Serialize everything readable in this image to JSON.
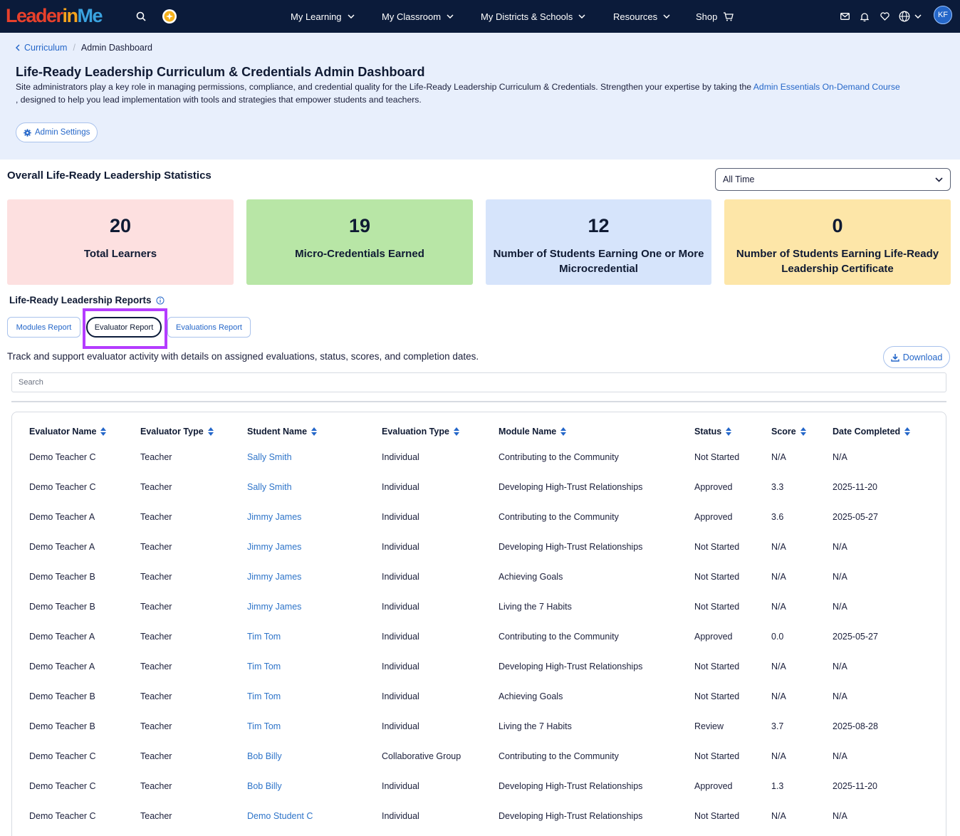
{
  "nav": {
    "logo": {
      "part1": "Leader",
      "part2": "in",
      "part3": "Me"
    },
    "items": [
      {
        "label": "My Learning",
        "has_chevron": true
      },
      {
        "label": "My Classroom",
        "has_chevron": true
      },
      {
        "label": "My Districts & Schools",
        "has_chevron": true
      },
      {
        "label": "Resources",
        "has_chevron": true
      },
      {
        "label": "Shop",
        "icon": "cart-icon"
      }
    ],
    "right_icons": [
      "mail-icon",
      "bell-icon",
      "heart-icon",
      "globe-icon"
    ],
    "avatar_initials": "KF"
  },
  "breadcrumb": {
    "parent": "Curriculum",
    "current": "Admin Dashboard"
  },
  "header": {
    "title": "Life-Ready Leadership Curriculum & Credentials Admin Dashboard",
    "desc_before": "Site administrators play a key role in managing permissions, compliance, and credential quality for the Life-Ready Leadership Curriculum & Credentials. Strengthen your expertise by taking the ",
    "desc_link": "Admin Essentials On-Demand Course",
    "desc_after": " , designed to help you lead implementation with tools and strategies that empower students and teachers.",
    "admin_settings_label": "Admin Settings"
  },
  "stats": {
    "title": "Overall Life-Ready Leadership Statistics",
    "time_filter": "All Time",
    "cards": [
      {
        "value": "20",
        "label": "Total Learners",
        "color": "#fde0e0"
      },
      {
        "value": "19",
        "label": "Micro-Credentials Earned",
        "color": "#b8e6a6"
      },
      {
        "value": "12",
        "label": "Number of Students Earning One or More Microcredential",
        "color": "#d6e4fb"
      },
      {
        "value": "0",
        "label": "Number of Students Earning Life-Ready Leadership Certificate",
        "color": "#fde6a8"
      }
    ]
  },
  "reports": {
    "title": "Life-Ready Leadership Reports",
    "tabs": [
      {
        "label": "Modules Report",
        "active": false
      },
      {
        "label": "Evaluator Report",
        "active": true
      },
      {
        "label": "Evaluations Report",
        "active": false
      }
    ],
    "description": "Track and support evaluator activity with details on assigned evaluations, status, scores, and completion dates.",
    "download_label": "Download",
    "search_placeholder": "Search"
  },
  "table": {
    "columns": [
      "Evaluator Name",
      "Evaluator Type",
      "Student Name",
      "Evaluation Type",
      "Module Name",
      "Status",
      "Score",
      "Date Completed"
    ],
    "rows": [
      [
        "Demo Teacher C",
        "Teacher",
        "Sally Smith",
        "Individual",
        "Contributing to the Community",
        "Not Started",
        "N/A",
        "N/A"
      ],
      [
        "Demo Teacher C",
        "Teacher",
        "Sally Smith",
        "Individual",
        "Developing High-Trust Relationships",
        "Approved",
        "3.3",
        "2025-11-20"
      ],
      [
        "Demo Teacher A",
        "Teacher",
        "Jimmy James",
        "Individual",
        "Contributing to the Community",
        "Approved",
        "3.6",
        "2025-05-27"
      ],
      [
        "Demo Teacher A",
        "Teacher",
        "Jimmy James",
        "Individual",
        "Developing High-Trust Relationships",
        "Not Started",
        "N/A",
        "N/A"
      ],
      [
        "Demo Teacher B",
        "Teacher",
        "Jimmy James",
        "Individual",
        "Achieving Goals",
        "Not Started",
        "N/A",
        "N/A"
      ],
      [
        "Demo Teacher B",
        "Teacher",
        "Jimmy James",
        "Individual",
        "Living the 7 Habits",
        "Not Started",
        "N/A",
        "N/A"
      ],
      [
        "Demo Teacher A",
        "Teacher",
        "Tim Tom",
        "Individual",
        "Contributing to the Community",
        "Approved",
        "0.0",
        "2025-05-27"
      ],
      [
        "Demo Teacher A",
        "Teacher",
        "Tim Tom",
        "Individual",
        "Developing High-Trust Relationships",
        "Not Started",
        "N/A",
        "N/A"
      ],
      [
        "Demo Teacher B",
        "Teacher",
        "Tim Tom",
        "Individual",
        "Achieving Goals",
        "Not Started",
        "N/A",
        "N/A"
      ],
      [
        "Demo Teacher B",
        "Teacher",
        "Tim Tom",
        "Individual",
        "Living the 7 Habits",
        "Review",
        "3.7",
        "2025-08-28"
      ],
      [
        "Demo Teacher C",
        "Teacher",
        "Bob Billy",
        "Collaborative Group",
        "Contributing to the Community",
        "Not Started",
        "N/A",
        "N/A"
      ],
      [
        "Demo Teacher C",
        "Teacher",
        "Bob Billy",
        "Individual",
        "Developing High-Trust Relationships",
        "Approved",
        "1.3",
        "2025-11-20"
      ],
      [
        "Demo Teacher C",
        "Teacher",
        "Demo Student C",
        "Individual",
        "Developing High-Trust Relationships",
        "Not Started",
        "N/A",
        "N/A"
      ]
    ]
  },
  "colors": {
    "nav_bg": "#0b1b3a",
    "link": "#2567c9",
    "header_bg": "#e8effc",
    "highlight": "#b43cff"
  }
}
